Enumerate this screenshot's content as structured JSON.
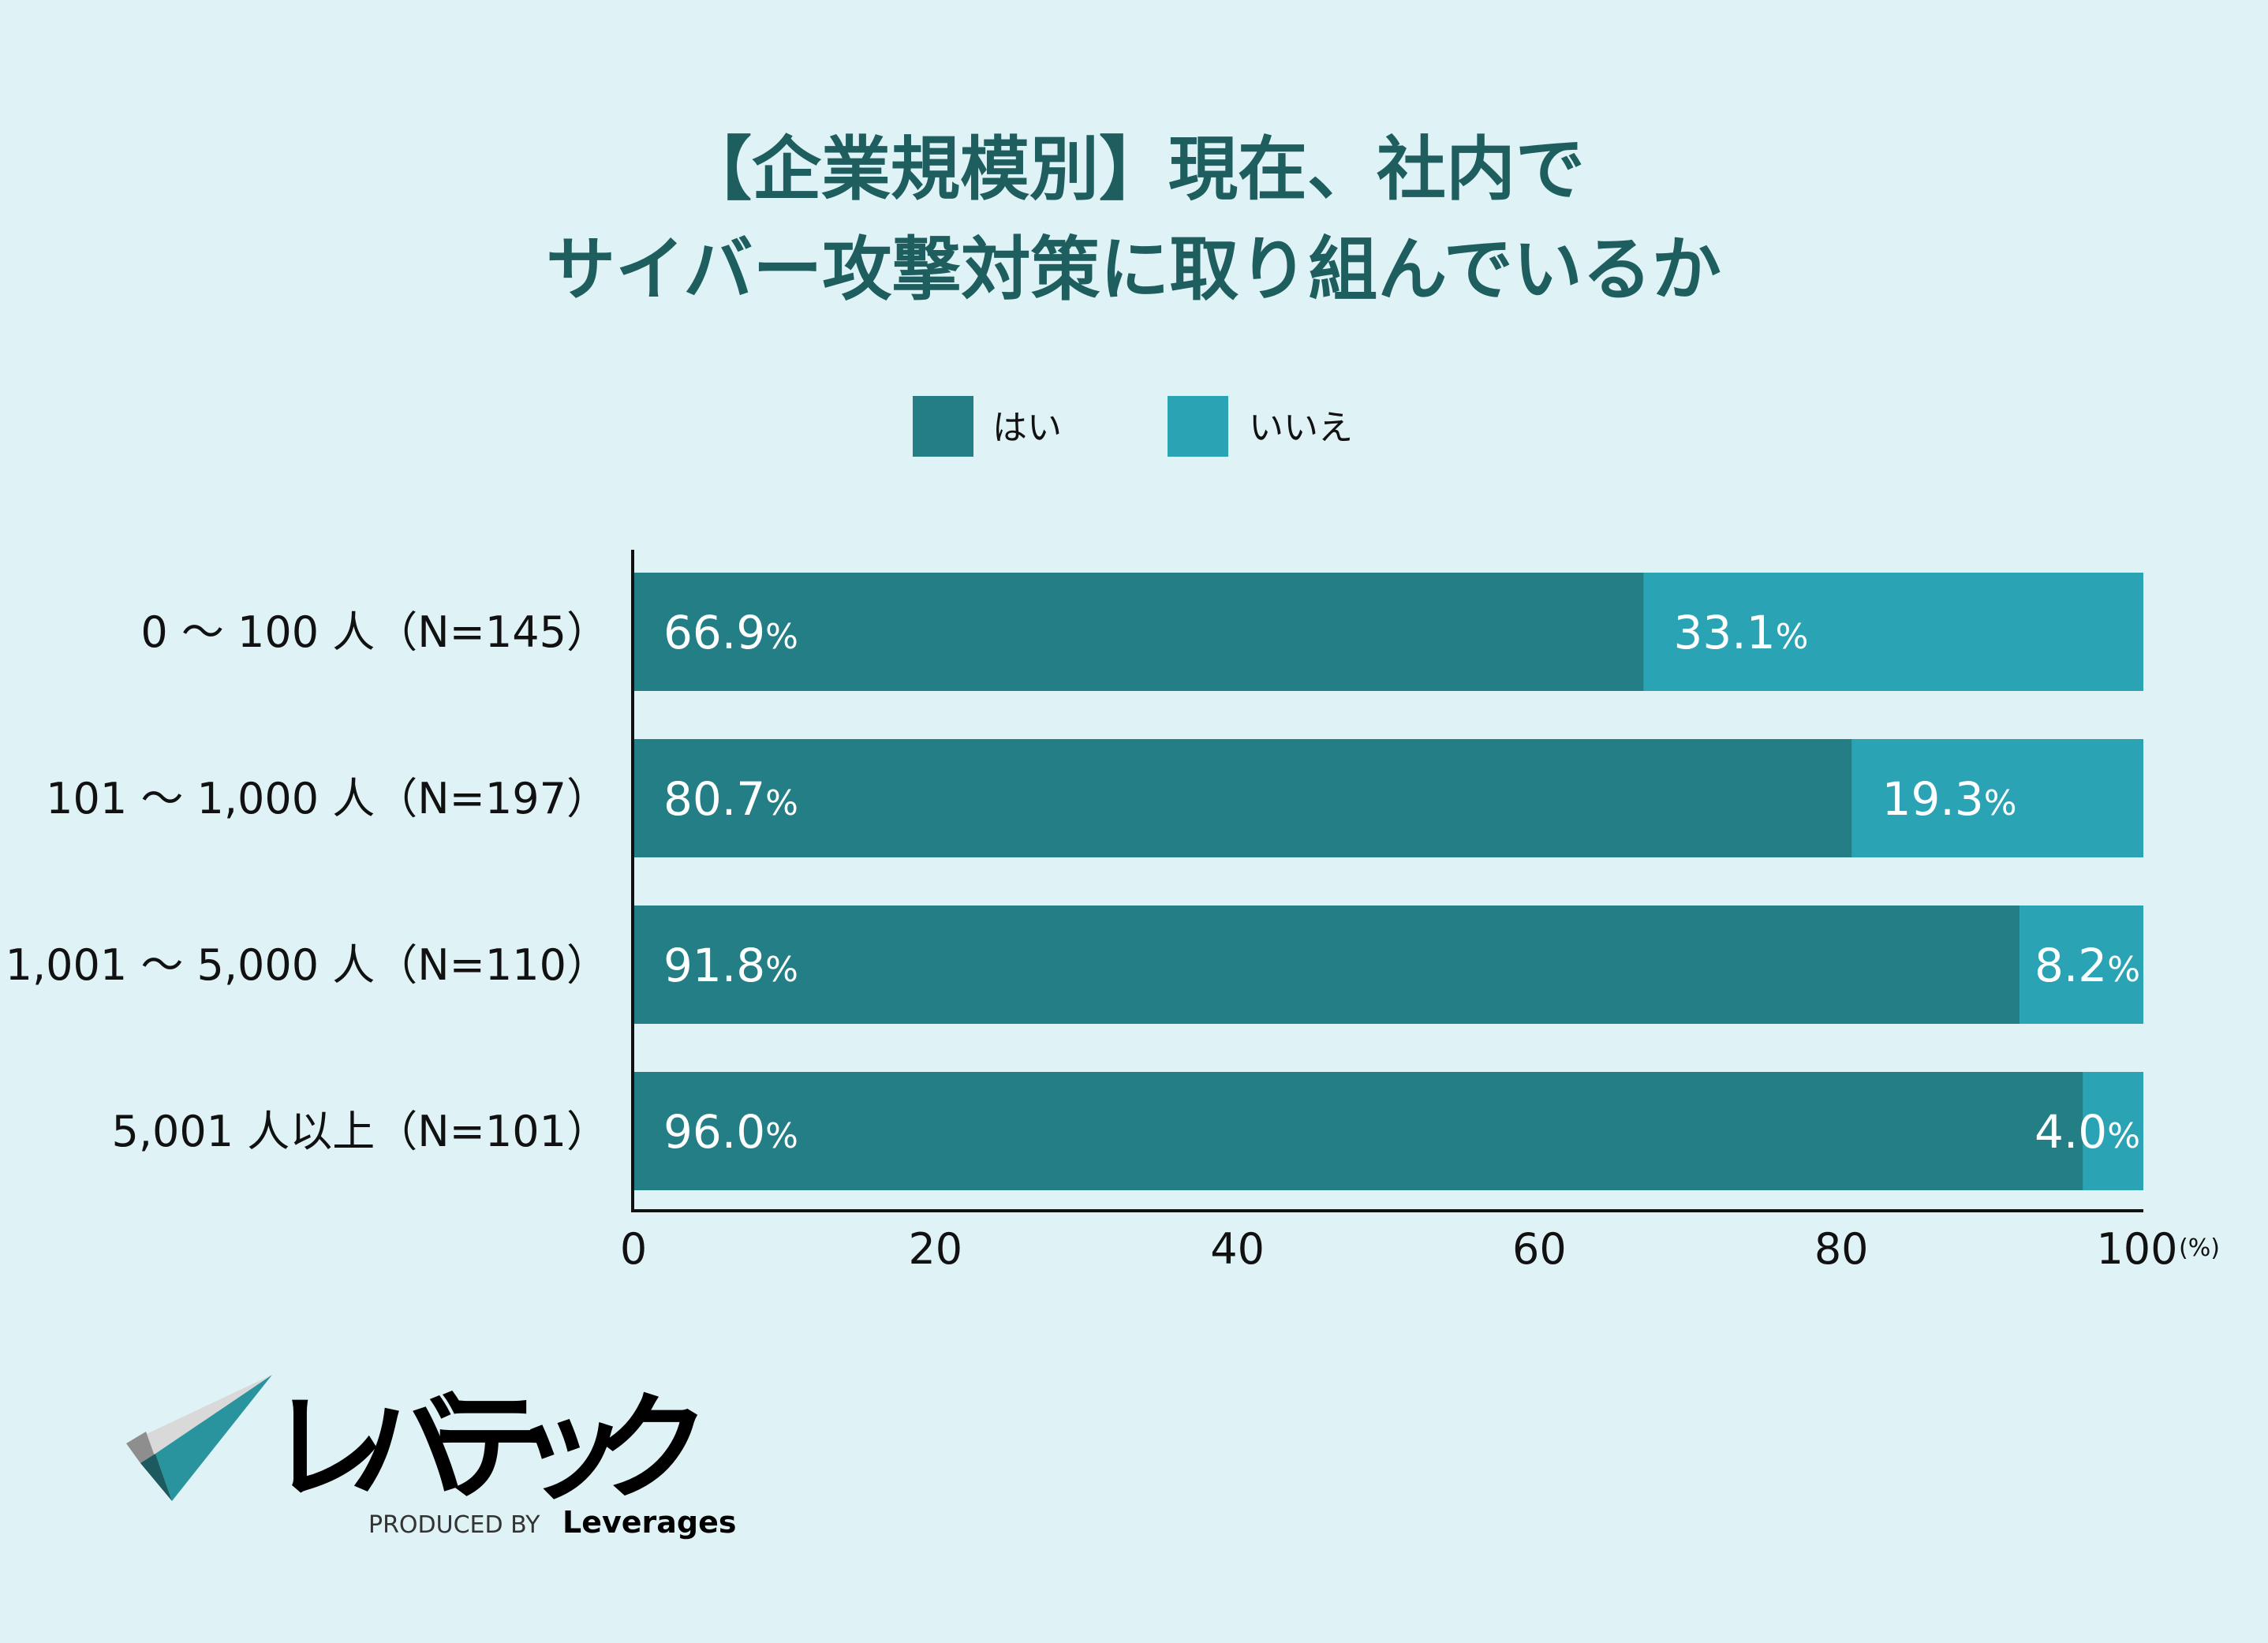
{
  "chart_data": {
    "type": "bar",
    "orientation": "horizontal",
    "stacked": true,
    "title": [
      "【企業規模別】現在、社内で",
      "サイバー攻撃対策に取り組んでいるか"
    ],
    "categories": [
      "0 〜 100 人（N=145）",
      "101 〜 1,000 人（N=197）",
      "1,001 〜 5,000 人（N=110）",
      "5,001 人以上（N=101）"
    ],
    "series": [
      {
        "name": "はい",
        "color": "#237f85",
        "values": [
          66.9,
          80.7,
          91.8,
          96.0
        ],
        "labels": [
          "66.9",
          "80.7",
          "91.8",
          "96.0"
        ]
      },
      {
        "name": "いいえ",
        "color": "#2aa3b5",
        "values": [
          33.1,
          19.3,
          8.2,
          4.0
        ],
        "labels": [
          "33.1",
          "19.3",
          "8.2",
          "4.0"
        ]
      }
    ],
    "percent_sign": "%",
    "xlim": [
      0,
      100
    ],
    "xticks": [
      "0",
      "20",
      "40",
      "60",
      "80",
      "100"
    ],
    "xunit": "(%)",
    "legend_position": "top-center",
    "grid": false
  },
  "brand": {
    "logo_text": "レバテック",
    "produced_by": "PRODUCED BY",
    "company": "Leverages"
  }
}
